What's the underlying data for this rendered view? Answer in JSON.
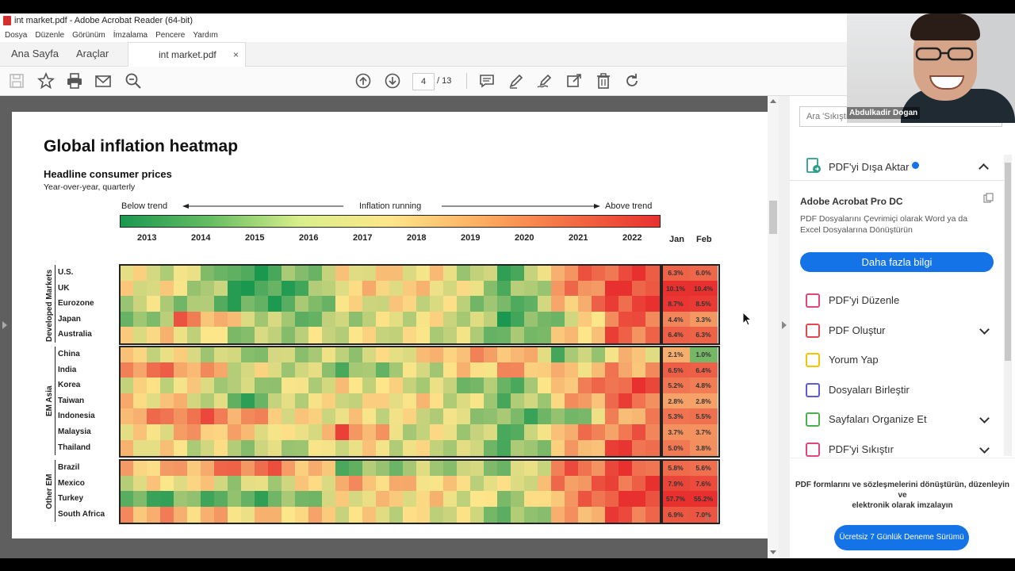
{
  "window": {
    "title": "int market.pdf - Adobe Acrobat Reader (64-bit)",
    "menu": [
      "Dosya",
      "Düzenle",
      "Görünüm",
      "İmzalama",
      "Pencere",
      "Yardım"
    ]
  },
  "tabs": {
    "home": "Ana Sayfa",
    "tools": "Araçlar",
    "document": "int market.pdf",
    "close": "×"
  },
  "toolbar": {
    "icons": [
      "save-icon",
      "star-icon",
      "print-icon",
      "email-icon",
      "zoom-search-icon",
      "page-up-icon",
      "page-down-icon",
      "comment-icon",
      "pen-icon",
      "sign-icon",
      "share-icon",
      "trash-icon",
      "rotate-icon"
    ],
    "current_page": "4",
    "total_pages": "/ 13"
  },
  "page": {
    "title": "Global inflation heatmap",
    "subtitle": "Headline consumer prices",
    "subtitle2": "Year-over-year, quarterly",
    "legend_left": "Below trend",
    "legend_mid": "Inflation running",
    "legend_right": "Above trend",
    "page_number": "4",
    "colors": {
      "low": "#1a9850",
      "mid": "#fde68a",
      "high": "#e8312f"
    }
  },
  "chart_data": {
    "type": "heatmap",
    "title": "Global inflation heatmap",
    "subtitle": "Headline consumer prices",
    "x": [
      "2013",
      "2014",
      "2015",
      "2016",
      "2017",
      "2018",
      "2019",
      "2020",
      "2021",
      "2022"
    ],
    "groups": [
      {
        "name": "Developed Markets",
        "countries": [
          {
            "name": "U.S.",
            "jan": "6.3%",
            "feb": "6.0%",
            "levels": [
              0.45,
              0.42,
              0.05,
              0.2,
              0.5,
              0.55,
              0.45,
              0.1,
              0.75,
              0.92
            ]
          },
          {
            "name": "UK",
            "jan": "10.1%",
            "feb": "10.4%",
            "levels": [
              0.5,
              0.45,
              0.05,
              0.1,
              0.55,
              0.55,
              0.5,
              0.15,
              0.7,
              0.95
            ]
          },
          {
            "name": "Eurozone",
            "jan": "8.7%",
            "feb": "8.5%",
            "levels": [
              0.4,
              0.3,
              0.1,
              0.15,
              0.45,
              0.5,
              0.4,
              0.1,
              0.6,
              0.95
            ]
          },
          {
            "name": "Japan",
            "jan": "4.4%",
            "feb": "3.3%",
            "levels": [
              0.1,
              0.8,
              0.5,
              0.2,
              0.35,
              0.45,
              0.45,
              0.1,
              0.3,
              0.85
            ]
          },
          {
            "name": "Australia",
            "jan": "6.4%",
            "feb": "6.3%",
            "levels": [
              0.55,
              0.5,
              0.3,
              0.35,
              0.45,
              0.45,
              0.4,
              0.15,
              0.5,
              0.85
            ]
          }
        ]
      },
      {
        "name": "EM Asia",
        "countries": [
          {
            "name": "China",
            "jan": "2.1%",
            "feb": "1.0%",
            "levels": [
              0.5,
              0.45,
              0.3,
              0.35,
              0.35,
              0.5,
              0.65,
              0.7,
              0.2,
              0.55
            ]
          },
          {
            "name": "India",
            "jan": "6.5%",
            "feb": "6.4%",
            "levels": [
              0.8,
              0.75,
              0.45,
              0.4,
              0.2,
              0.35,
              0.5,
              0.7,
              0.55,
              0.7
            ]
          },
          {
            "name": "Korea",
            "jan": "5.2%",
            "feb": "4.8%",
            "levels": [
              0.45,
              0.5,
              0.3,
              0.4,
              0.5,
              0.45,
              0.3,
              0.15,
              0.65,
              0.9
            ]
          },
          {
            "name": "Taiwan",
            "jan": "2.8%",
            "feb": "2.8%",
            "levels": [
              0.55,
              0.55,
              0.1,
              0.45,
              0.45,
              0.55,
              0.45,
              0.2,
              0.6,
              0.85
            ]
          },
          {
            "name": "Indonesia",
            "jan": "5.3%",
            "feb": "5.5%",
            "levels": [
              0.7,
              0.85,
              0.75,
              0.5,
              0.5,
              0.45,
              0.4,
              0.2,
              0.15,
              0.7
            ]
          },
          {
            "name": "Malaysia",
            "jan": "3.7%",
            "feb": "3.7%",
            "levels": [
              0.45,
              0.65,
              0.6,
              0.4,
              0.85,
              0.4,
              0.45,
              0.15,
              0.7,
              0.8
            ]
          },
          {
            "name": "Thailand",
            "jan": "5.0%",
            "feb": "3.8%",
            "levels": [
              0.55,
              0.45,
              0.35,
              0.35,
              0.5,
              0.45,
              0.4,
              0.15,
              0.55,
              0.9
            ]
          }
        ]
      },
      {
        "name": "Other EM",
        "countries": [
          {
            "name": "Brazil",
            "jan": "5.8%",
            "feb": "5.6%",
            "levels": [
              0.6,
              0.65,
              0.85,
              0.75,
              0.2,
              0.3,
              0.35,
              0.25,
              0.8,
              0.9
            ]
          },
          {
            "name": "Mexico",
            "jan": "7.9%",
            "feb": "7.6%",
            "levels": [
              0.45,
              0.55,
              0.35,
              0.45,
              0.65,
              0.6,
              0.5,
              0.4,
              0.75,
              0.9
            ]
          },
          {
            "name": "Turkey",
            "jan": "57.7%",
            "feb": "55.2%",
            "levels": [
              0.1,
              0.2,
              0.15,
              0.2,
              0.5,
              0.55,
              0.5,
              0.3,
              0.7,
              0.98
            ]
          },
          {
            "name": "South Africa",
            "jan": "6.9%",
            "feb": "7.0%",
            "levels": [
              0.7,
              0.65,
              0.55,
              0.6,
              0.5,
              0.45,
              0.45,
              0.15,
              0.6,
              0.88
            ]
          }
        ]
      }
    ],
    "extra_columns": [
      "Jan",
      "Feb"
    ]
  },
  "right_panel": {
    "search_placeholder": "Ara 'Sıkıştırma boyutu'",
    "export_label": "PDF'yi Dışa Aktar",
    "pro_title": "Adobe Acrobat Pro DC",
    "pro_desc1": "PDF Dosyalarını Çevrimiçi olarak Word ya da",
    "pro_desc2": "Excel Dosyalarına Dönüştürün",
    "more_info": "Daha fazla bilgi",
    "tools": [
      {
        "label": "PDF'yi Düzenle",
        "color": "#e0457b",
        "chevron": false
      },
      {
        "label": "PDF Oluştur",
        "color": "#e34850",
        "chevron": true
      },
      {
        "label": "Yorum Yap",
        "color": "#f5c400",
        "chevron": false
      },
      {
        "label": "Dosyaları Birleştir",
        "color": "#5b5bd6",
        "chevron": false
      },
      {
        "label": "Sayfaları Organize Et",
        "color": "#4caf50",
        "chevron": true
      },
      {
        "label": "PDF'yi Sıkıştır",
        "color": "#e0457b",
        "chevron": true
      }
    ],
    "promo1": "PDF formlarını ve sözleşmelerini dönüştürün, düzenleyin",
    "promo2": "ve",
    "promo3": "elektronik olarak imzalayın",
    "trial_button": "Ücretsiz 7 Günlük Deneme Sürümü"
  },
  "webcam": {
    "name": "Abdulkadir Dogan"
  }
}
